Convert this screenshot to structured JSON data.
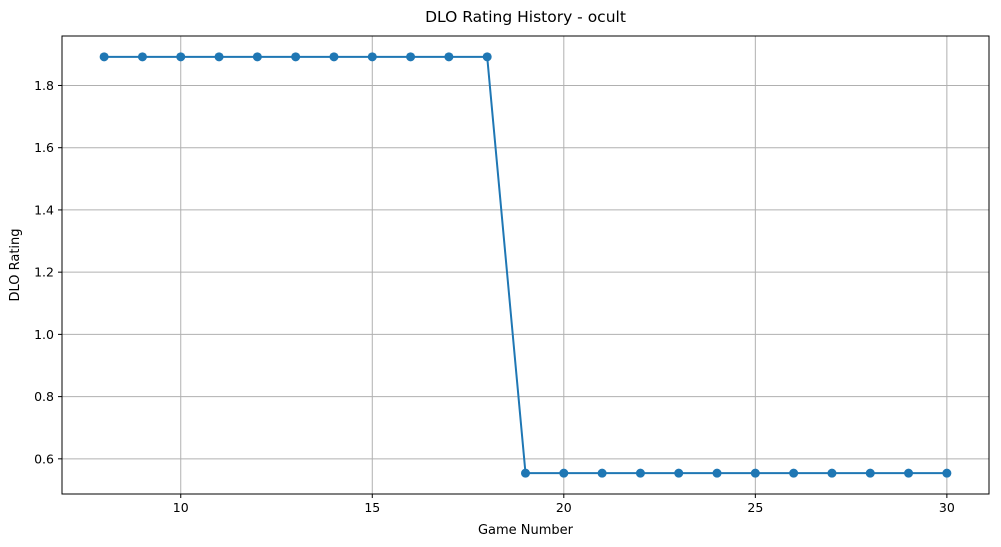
{
  "chart_data": {
    "type": "line",
    "title": "DLO Rating History - ocult",
    "xlabel": "Game Number",
    "ylabel": "DLO Rating",
    "xlim": [
      6.9,
      31.1
    ],
    "ylim": [
      0.487,
      1.959
    ],
    "xticks": [
      10,
      15,
      20,
      25,
      30
    ],
    "yticks": [
      0.6,
      0.8,
      1.0,
      1.2,
      1.4,
      1.6,
      1.8
    ],
    "grid": true,
    "series": [
      {
        "color": "#1f77b4",
        "marker": "circle",
        "x": [
          8,
          9,
          10,
          11,
          12,
          13,
          14,
          15,
          16,
          17,
          18,
          19,
          20,
          21,
          22,
          23,
          24,
          25,
          26,
          27,
          28,
          29,
          30
        ],
        "y": [
          1.892,
          1.892,
          1.892,
          1.892,
          1.892,
          1.892,
          1.892,
          1.892,
          1.892,
          1.892,
          1.892,
          0.554,
          0.554,
          0.554,
          0.554,
          0.554,
          0.554,
          0.554,
          0.554,
          0.554,
          0.554,
          0.554,
          0.554
        ]
      }
    ]
  }
}
